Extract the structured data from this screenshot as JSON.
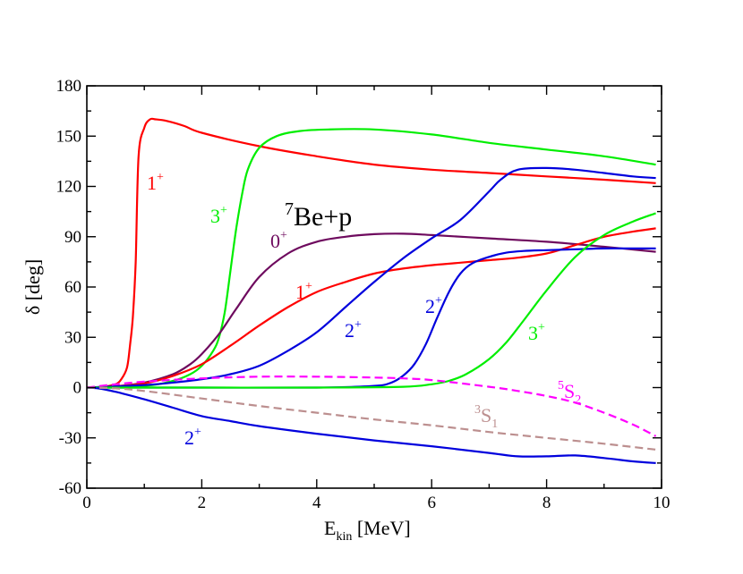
{
  "chart_data": {
    "type": "line",
    "title": "",
    "xlabel_main": "E",
    "xlabel_sub": "kin",
    "xlabel_rest": " [MeV]",
    "ylabel": "δ [deg]",
    "xlim": [
      0,
      10
    ],
    "ylim": [
      -60,
      180
    ],
    "xticks": [
      0,
      2,
      4,
      6,
      8,
      10
    ],
    "yticks": [
      -60,
      -30,
      0,
      30,
      60,
      90,
      120,
      150,
      180
    ],
    "grid": false,
    "legend": "none",
    "annotations": {
      "system": {
        "pre_sup": "7",
        "main": "Be+p"
      },
      "l1": {
        "main": "1",
        "sup": "+",
        "color": "#ff0000"
      },
      "l2": {
        "main": "3",
        "sup": "+",
        "color": "#00ee00"
      },
      "l3": {
        "main": "0",
        "sup": "+",
        "color": "#6e0a5e"
      },
      "l4": {
        "main": "1",
        "sup": "+",
        "color": "#ff0000"
      },
      "l5": {
        "main": "2",
        "sup": "+",
        "color": "#0000dd"
      },
      "l6": {
        "main": "2",
        "sup": "+",
        "color": "#0000dd"
      },
      "l7": {
        "main": "3",
        "sup": "+",
        "color": "#00ee00"
      },
      "l8": {
        "main": "2",
        "sup": "+",
        "color": "#0000dd"
      },
      "l9": {
        "pre_sup": "5",
        "main": "S",
        "sub": "2",
        "color": "#ff00ff"
      },
      "l10": {
        "pre_sup": "3",
        "main": "S",
        "sub": "1",
        "color": "#bc8f8f"
      }
    },
    "series": [
      {
        "name": "1+ (low, sharp)",
        "color": "#ff0000",
        "dash": false,
        "x": [
          0,
          0.3,
          0.5,
          0.6,
          0.7,
          0.75,
          0.8,
          0.85,
          0.9,
          1.0,
          1.1,
          1.2,
          1.4,
          1.7,
          2.0,
          3.0,
          4.0,
          5.0,
          6.0,
          7.0,
          8.0,
          9.0,
          9.9
        ],
        "y": [
          0,
          0.5,
          2,
          5,
          12,
          25,
          42,
          75,
          138,
          155,
          160,
          160,
          159,
          156,
          152,
          144,
          138,
          133,
          130,
          128,
          126,
          124,
          122
        ]
      },
      {
        "name": "3+ (low)",
        "color": "#00ee00",
        "dash": false,
        "x": [
          0,
          1.0,
          1.5,
          1.8,
          2.0,
          2.2,
          2.3,
          2.4,
          2.5,
          2.6,
          2.7,
          2.8,
          3.0,
          3.3,
          3.7,
          4.2,
          5.0,
          6.0,
          7.0,
          8.0,
          9.0,
          9.9
        ],
        "y": [
          0,
          1,
          4,
          8,
          13,
          22,
          30,
          45,
          70,
          95,
          115,
          130,
          143,
          150,
          153,
          154,
          154,
          151,
          146,
          142,
          138,
          133
        ]
      },
      {
        "name": "0+",
        "color": "#6e0a5e",
        "dash": false,
        "x": [
          0,
          0.5,
          1.0,
          1.5,
          1.8,
          2.0,
          2.3,
          2.6,
          3.0,
          3.5,
          4.0,
          4.5,
          5.0,
          5.5,
          6.0,
          7.0,
          8.0,
          9.0,
          9.9
        ],
        "y": [
          0,
          0.8,
          3,
          8,
          14,
          20,
          32,
          47,
          66,
          80,
          87,
          90,
          91.5,
          91.8,
          91,
          89,
          87,
          84,
          81
        ]
      },
      {
        "name": "1+ (broad)",
        "color": "#ff0000",
        "dash": false,
        "x": [
          0,
          0.5,
          1.0,
          1.5,
          2.0,
          2.5,
          3.0,
          3.5,
          4.0,
          4.5,
          5.0,
          5.5,
          6.0,
          6.5,
          7.0,
          7.5,
          8.0,
          8.5,
          9.0,
          9.5,
          9.9
        ],
        "y": [
          0,
          0.8,
          2.5,
          7,
          14,
          25,
          37,
          48,
          57,
          63,
          68,
          71,
          73,
          74.5,
          76,
          77.5,
          80,
          85,
          90,
          93,
          95
        ]
      },
      {
        "name": "2+ (broad)",
        "color": "#0000dd",
        "dash": false,
        "x": [
          0,
          1.0,
          1.5,
          2.0,
          2.5,
          3.0,
          3.5,
          4.0,
          4.5,
          5.0,
          5.5,
          6.0,
          6.5,
          7.0,
          7.2,
          7.5,
          8.0,
          8.5,
          9.0,
          9.5,
          9.9
        ],
        "y": [
          0,
          1.5,
          3,
          5,
          8,
          13,
          22,
          33,
          48,
          63,
          77,
          89,
          100,
          117,
          124,
          130,
          131,
          130,
          128,
          126,
          125
        ]
      },
      {
        "name": "2+ (mid)",
        "color": "#0000dd",
        "dash": false,
        "x": [
          0,
          2.0,
          4.0,
          5.0,
          5.3,
          5.5,
          5.7,
          5.9,
          6.1,
          6.3,
          6.5,
          6.7,
          7.0,
          7.3,
          7.6,
          8.0,
          8.5,
          9.0,
          9.5,
          9.9
        ],
        "y": [
          0,
          0,
          0,
          1,
          3,
          7,
          14,
          26,
          42,
          57,
          68,
          74,
          78,
          80.5,
          81.5,
          82,
          82.5,
          83,
          83,
          83
        ]
      },
      {
        "name": "3+ (high)",
        "color": "#00ee00",
        "dash": false,
        "x": [
          0,
          2.0,
          4.0,
          5.5,
          6.0,
          6.3,
          6.6,
          7.0,
          7.3,
          7.6,
          8.0,
          8.5,
          9.0,
          9.5,
          9.9
        ],
        "y": [
          0,
          0,
          0,
          0.5,
          2,
          4,
          8,
          17,
          27,
          40,
          58,
          78,
          91,
          99,
          104
        ]
      },
      {
        "name": "2+ (negative)",
        "color": "#0000dd",
        "dash": false,
        "x": [
          0,
          0.2,
          0.5,
          1.0,
          1.5,
          2.0,
          2.5,
          3.0,
          4.0,
          5.0,
          6.0,
          7.0,
          7.5,
          8.0,
          8.5,
          9.0,
          9.5,
          9.9
        ],
        "y": [
          0,
          -0.5,
          -2.5,
          -7,
          -12,
          -17,
          -20,
          -23,
          -27.5,
          -31.5,
          -35,
          -39,
          -41,
          -41,
          -40.5,
          -42,
          -44,
          -45
        ]
      },
      {
        "name": "5S2",
        "color": "#ff00ff",
        "dash": true,
        "x": [
          0,
          0.5,
          1.0,
          2.0,
          3.0,
          4.0,
          5.0,
          5.5,
          6.0,
          7.0,
          7.5,
          8.0,
          8.5,
          9.0,
          9.5,
          9.9
        ],
        "y": [
          0,
          2,
          3.5,
          5.5,
          6.5,
          6.5,
          6,
          5.5,
          4.5,
          0.5,
          -2,
          -5,
          -9,
          -15,
          -22,
          -29
        ]
      },
      {
        "name": "3S1",
        "color": "#bc8f8f",
        "dash": true,
        "x": [
          0,
          0.5,
          1.0,
          2.0,
          3.0,
          4.0,
          5.0,
          6.0,
          7.0,
          8.0,
          9.0,
          9.9
        ],
        "y": [
          0,
          -0.5,
          -2,
          -6.5,
          -11,
          -15,
          -19,
          -22.5,
          -26.5,
          -30,
          -33.5,
          -37
        ]
      }
    ]
  }
}
